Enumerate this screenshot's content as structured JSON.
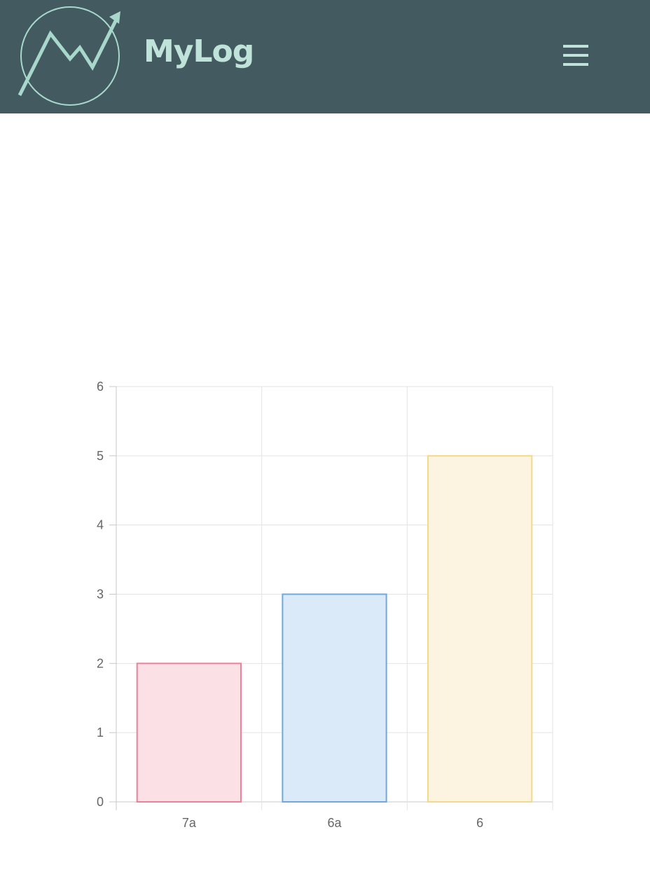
{
  "header": {
    "brand": "MyLog",
    "logo_icon": "trend-chart-logo",
    "menu_icon": "hamburger-menu-icon",
    "background": "#425a60",
    "accent": "#bfe3d9"
  },
  "chart_data": {
    "type": "bar",
    "categories": [
      "7a",
      "6a",
      "6"
    ],
    "values": [
      2,
      3,
      5
    ],
    "title": "",
    "xlabel": "",
    "ylabel": "",
    "ylim": [
      0,
      6
    ],
    "yticks": [
      "0",
      "1",
      "2",
      "3",
      "4",
      "5",
      "6"
    ],
    "grid": true,
    "legend": "none",
    "bar_colors": [
      {
        "fill": "#fbe1e6",
        "stroke": "#ee809a"
      },
      {
        "fill": "#dbeaf9",
        "stroke": "#6fa9dc"
      },
      {
        "fill": "#fcf4e0",
        "stroke": "#f4d98a"
      }
    ]
  }
}
